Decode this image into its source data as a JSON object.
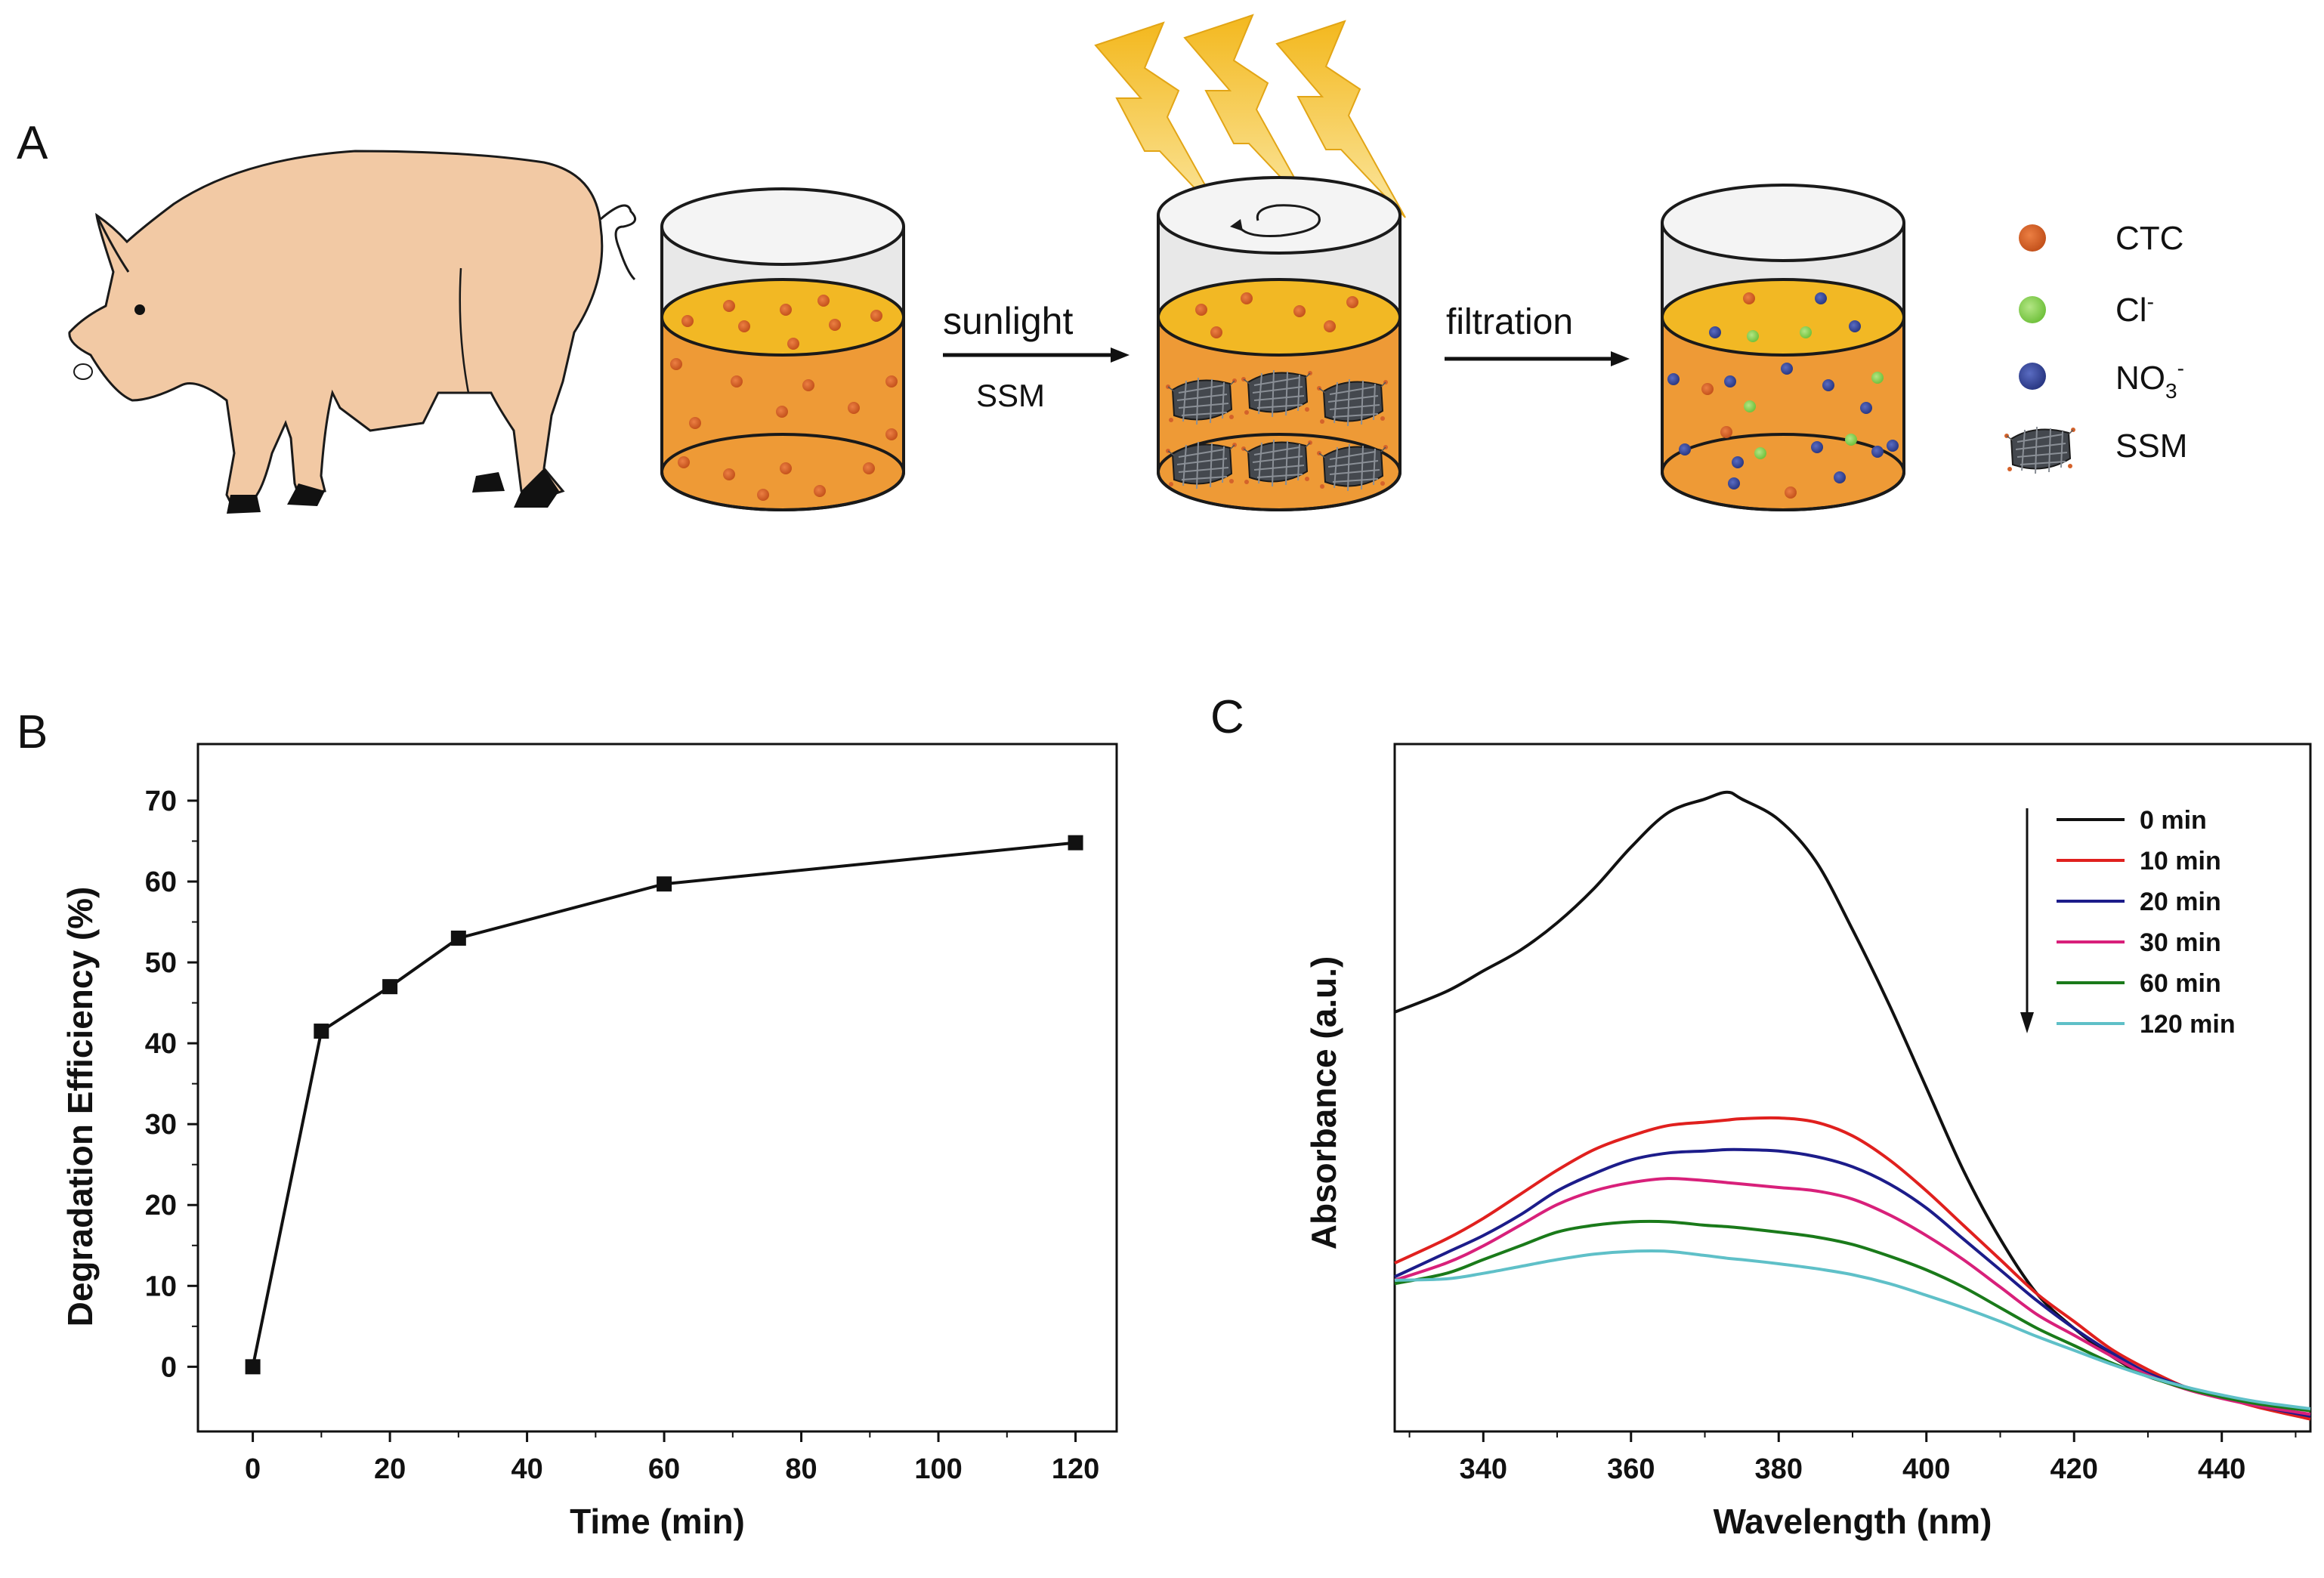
{
  "panels": {
    "a": "A",
    "b": "B",
    "c": "C"
  },
  "schematic": {
    "arrow1_top": "sunlight",
    "arrow1_bottom": "SSM",
    "arrow2_top": "filtration",
    "legend": {
      "ctc": "CTC",
      "cl": "Cl",
      "cl_sup": "-",
      "no3": "NO",
      "no3_sub": "3",
      "no3_sup": "-",
      "ssm": "SSM"
    },
    "colors": {
      "ctc": "#d4622a",
      "cl": "#8fd05a",
      "no3": "#3a4aa0",
      "liquid": "#ee9a36",
      "liquid_top": "#f2b824",
      "pig": "#f2c9a4",
      "bolt": "#f3b81e"
    }
  },
  "chart_data": [
    {
      "type": "line",
      "panel": "B",
      "title": "",
      "xlabel": "Time (min)",
      "ylabel": "Degradation Efficiency (%)",
      "xlim": [
        -8,
        126
      ],
      "ylim": [
        -8,
        77
      ],
      "xticks": [
        0,
        20,
        40,
        60,
        80,
        100,
        120
      ],
      "yticks": [
        0,
        10,
        20,
        30,
        40,
        50,
        60,
        70
      ],
      "x": [
        0,
        10,
        20,
        30,
        60,
        120
      ],
      "series": [
        {
          "name": "Degradation",
          "values": [
            0,
            41.5,
            47,
            53,
            59.7,
            64.8
          ],
          "color": "#111111"
        }
      ]
    },
    {
      "type": "line",
      "panel": "C",
      "title": "",
      "xlabel": "Wavelength (nm)",
      "ylabel": "Absorbance (a.u.)",
      "xlim": [
        328,
        452
      ],
      "ylim": [
        0,
        1
      ],
      "xticks": [
        340,
        360,
        380,
        400,
        420,
        440
      ],
      "legend_position": "top-right",
      "x": [
        328,
        335,
        340,
        345,
        350,
        355,
        360,
        365,
        370,
        373,
        375,
        380,
        385,
        390,
        395,
        400,
        405,
        410,
        415,
        420,
        425,
        430,
        435,
        440,
        445,
        452
      ],
      "series": [
        {
          "name": "0 min",
          "color": "#111111",
          "values": [
            0.61,
            0.64,
            0.67,
            0.7,
            0.74,
            0.79,
            0.85,
            0.9,
            0.92,
            0.93,
            0.92,
            0.89,
            0.83,
            0.73,
            0.62,
            0.5,
            0.38,
            0.28,
            0.2,
            0.15,
            0.11,
            0.08,
            0.065,
            0.05,
            0.04,
            0.02
          ]
        },
        {
          "name": "10 min",
          "color": "#e0201e",
          "values": [
            0.245,
            0.28,
            0.31,
            0.345,
            0.38,
            0.41,
            0.43,
            0.445,
            0.45,
            0.453,
            0.455,
            0.456,
            0.45,
            0.43,
            0.395,
            0.35,
            0.3,
            0.25,
            0.2,
            0.16,
            0.12,
            0.09,
            0.065,
            0.05,
            0.035,
            0.018
          ]
        },
        {
          "name": "20 min",
          "color": "#1c1c8a",
          "values": [
            0.225,
            0.26,
            0.285,
            0.315,
            0.35,
            0.375,
            0.395,
            0.405,
            0.408,
            0.41,
            0.41,
            0.408,
            0.4,
            0.385,
            0.36,
            0.325,
            0.28,
            0.235,
            0.19,
            0.15,
            0.115,
            0.085,
            0.065,
            0.05,
            0.037,
            0.022
          ]
        },
        {
          "name": "30 min",
          "color": "#d8207a",
          "values": [
            0.22,
            0.245,
            0.27,
            0.3,
            0.33,
            0.35,
            0.362,
            0.368,
            0.365,
            0.362,
            0.36,
            0.355,
            0.35,
            0.338,
            0.315,
            0.285,
            0.25,
            0.21,
            0.17,
            0.14,
            0.11,
            0.082,
            0.062,
            0.048,
            0.037,
            0.025
          ]
        },
        {
          "name": "60 min",
          "color": "#1a7a1a",
          "values": [
            0.215,
            0.23,
            0.25,
            0.27,
            0.29,
            0.3,
            0.305,
            0.305,
            0.3,
            0.298,
            0.296,
            0.29,
            0.283,
            0.272,
            0.255,
            0.235,
            0.21,
            0.18,
            0.15,
            0.125,
            0.1,
            0.08,
            0.063,
            0.05,
            0.04,
            0.03
          ]
        },
        {
          "name": "120 min",
          "color": "#5fc0c8",
          "values": [
            0.22,
            0.222,
            0.23,
            0.24,
            0.25,
            0.258,
            0.262,
            0.262,
            0.256,
            0.252,
            0.25,
            0.244,
            0.237,
            0.228,
            0.215,
            0.198,
            0.18,
            0.16,
            0.138,
            0.118,
            0.098,
            0.08,
            0.065,
            0.053,
            0.043,
            0.033
          ]
        }
      ]
    }
  ]
}
